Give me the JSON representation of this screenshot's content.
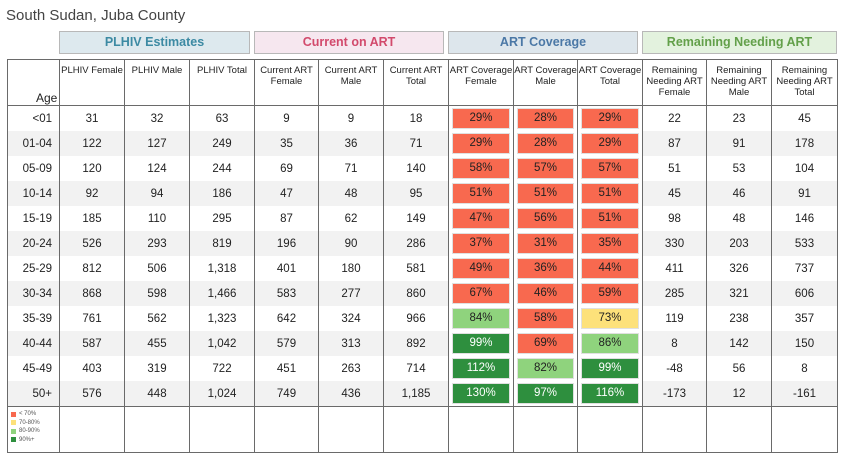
{
  "title": "South Sudan, Juba County",
  "groups": {
    "plhiv": "PLHIV Estimates",
    "current": "Current on ART",
    "coverage": "ART Coverage",
    "remaining": "Remaining Needing ART"
  },
  "colors": {
    "low": "#f8694f",
    "mid": "#fde17a",
    "high": "#8fd37d",
    "top": "#2e8f3e"
  },
  "legend": [
    {
      "label": "< 70%",
      "level": "low"
    },
    {
      "label": "70-80%",
      "level": "mid"
    },
    {
      "label": "80-90%",
      "level": "high"
    },
    {
      "label": "90%+",
      "level": "top"
    }
  ],
  "chart_data": {
    "type": "table",
    "row_header": "Age",
    "columns": [
      "PLHIV Female",
      "PLHIV Male",
      "PLHIV Total",
      "Current ART Female",
      "Current ART Male",
      "Current ART Total",
      "ART Coverage Female",
      "ART Coverage Male",
      "ART Coverage Total",
      "Remaining Needing ART Female",
      "Remaining Needing ART Male",
      "Remaining Needing ART Total"
    ],
    "rows": [
      {
        "age": "<01",
        "values": [
          "31",
          "32",
          "63",
          "9",
          "9",
          "18",
          "29%",
          "28%",
          "29%",
          "22",
          "23",
          "45"
        ]
      },
      {
        "age": "01-04",
        "values": [
          "122",
          "127",
          "249",
          "35",
          "36",
          "71",
          "29%",
          "28%",
          "29%",
          "87",
          "91",
          "178"
        ]
      },
      {
        "age": "05-09",
        "values": [
          "120",
          "124",
          "244",
          "69",
          "71",
          "140",
          "58%",
          "57%",
          "57%",
          "51",
          "53",
          "104"
        ]
      },
      {
        "age": "10-14",
        "values": [
          "92",
          "94",
          "186",
          "47",
          "48",
          "95",
          "51%",
          "51%",
          "51%",
          "45",
          "46",
          "91"
        ]
      },
      {
        "age": "15-19",
        "values": [
          "185",
          "110",
          "295",
          "87",
          "62",
          "149",
          "47%",
          "56%",
          "51%",
          "98",
          "48",
          "146"
        ]
      },
      {
        "age": "20-24",
        "values": [
          "526",
          "293",
          "819",
          "196",
          "90",
          "286",
          "37%",
          "31%",
          "35%",
          "330",
          "203",
          "533"
        ]
      },
      {
        "age": "25-29",
        "values": [
          "812",
          "506",
          "1,318",
          "401",
          "180",
          "581",
          "49%",
          "36%",
          "44%",
          "411",
          "326",
          "737"
        ]
      },
      {
        "age": "30-34",
        "values": [
          "868",
          "598",
          "1,466",
          "583",
          "277",
          "860",
          "67%",
          "46%",
          "59%",
          "285",
          "321",
          "606"
        ]
      },
      {
        "age": "35-39",
        "values": [
          "761",
          "562",
          "1,323",
          "642",
          "324",
          "966",
          "84%",
          "58%",
          "73%",
          "119",
          "238",
          "357"
        ]
      },
      {
        "age": "40-44",
        "values": [
          "587",
          "455",
          "1,042",
          "579",
          "313",
          "892",
          "99%",
          "69%",
          "86%",
          "8",
          "142",
          "150"
        ]
      },
      {
        "age": "45-49",
        "values": [
          "403",
          "319",
          "722",
          "451",
          "263",
          "714",
          "112%",
          "82%",
          "99%",
          "-48",
          "56",
          "8"
        ]
      },
      {
        "age": "50+",
        "values": [
          "576",
          "448",
          "1,024",
          "749",
          "436",
          "1,185",
          "130%",
          "97%",
          "116%",
          "-173",
          "12",
          "-161"
        ]
      }
    ]
  }
}
